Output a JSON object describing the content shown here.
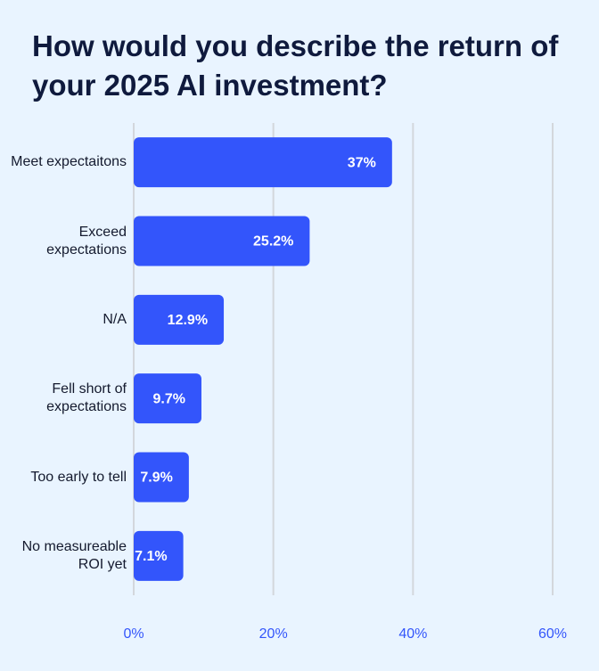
{
  "chart_data": {
    "type": "bar",
    "orientation": "horizontal",
    "title": "How would you describe the return of your 2025 AI investment?",
    "categories": [
      "Meet expectaitons",
      "Exceed expectations",
      "N/A",
      "Fell short of expectations",
      "Too early to tell",
      "No measureable ROI yet"
    ],
    "values": [
      37,
      25.2,
      12.9,
      9.7,
      7.9,
      7.1
    ],
    "value_labels": [
      "37%",
      "25.2%",
      "12.9%",
      "9.7%",
      "7.9%",
      "7.1%"
    ],
    "color": "#3355fb",
    "xlim": [
      0,
      60
    ],
    "xticks": [
      {
        "value": 0,
        "label": "0%"
      },
      {
        "value": 20,
        "label": "20%"
      },
      {
        "value": 40,
        "label": "40%"
      },
      {
        "value": 60,
        "label": "60%"
      }
    ],
    "grid": true
  }
}
